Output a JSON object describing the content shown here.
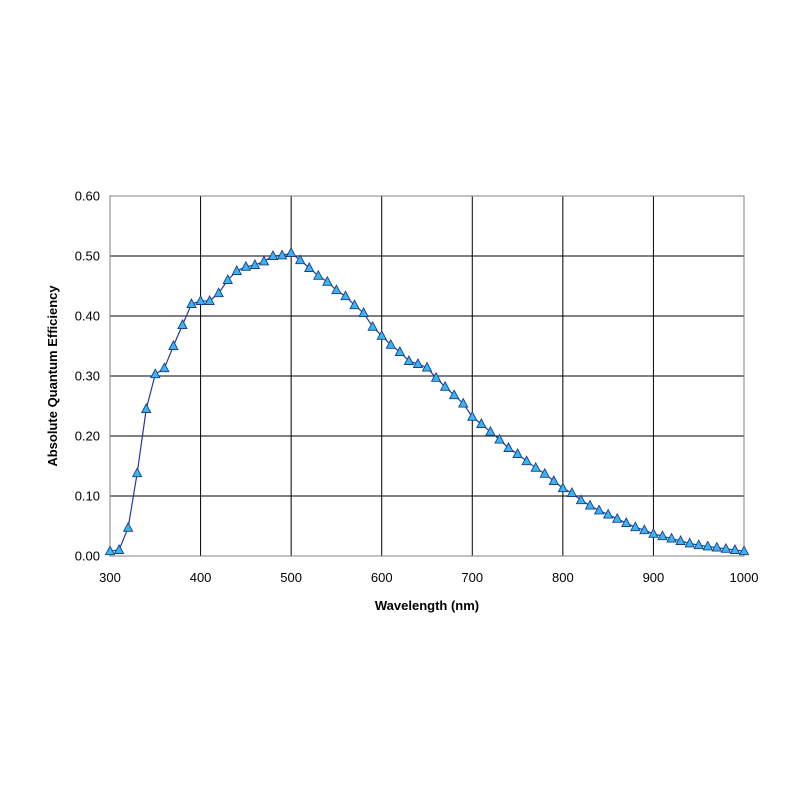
{
  "chart_data": {
    "type": "line",
    "title": "",
    "xlabel": "Wavelength (nm)",
    "ylabel": "Absolute Quantum Efficiency",
    "xlim": [
      300,
      1000
    ],
    "ylim": [
      0,
      0.6
    ],
    "x_ticks": [
      "300",
      "400",
      "500",
      "600",
      "700",
      "800",
      "900",
      "1000"
    ],
    "y_ticks": [
      "0.00",
      "0.10",
      "0.20",
      "0.30",
      "0.40",
      "0.50",
      "0.60"
    ],
    "grid": true,
    "legend": "none",
    "marker": "triangle",
    "colors": {
      "line": "#1f3a9e",
      "marker_fill": "#38b6f0",
      "marker_stroke": "#1a3d8c"
    },
    "series": [
      {
        "x": [
          300,
          310,
          320,
          330,
          340,
          350,
          360,
          370,
          380,
          390,
          400,
          410,
          420,
          430,
          440,
          450,
          460,
          470,
          480,
          490,
          500,
          510,
          520,
          530,
          540,
          550,
          560,
          570,
          580,
          590,
          600,
          610,
          620,
          630,
          640,
          650,
          660,
          670,
          680,
          690,
          700,
          710,
          720,
          730,
          740,
          750,
          760,
          770,
          780,
          790,
          800,
          810,
          820,
          830,
          840,
          850,
          860,
          870,
          880,
          890,
          900,
          910,
          920,
          930,
          940,
          950,
          960,
          970,
          980,
          990,
          1000
        ],
        "values": [
          0.008,
          0.01,
          0.047,
          0.138,
          0.245,
          0.303,
          0.313,
          0.35,
          0.385,
          0.42,
          0.425,
          0.425,
          0.438,
          0.46,
          0.475,
          0.482,
          0.485,
          0.491,
          0.5,
          0.501,
          0.505,
          0.493,
          0.48,
          0.467,
          0.457,
          0.443,
          0.433,
          0.418,
          0.405,
          0.382,
          0.367,
          0.352,
          0.34,
          0.325,
          0.32,
          0.314,
          0.297,
          0.282,
          0.268,
          0.254,
          0.232,
          0.22,
          0.207,
          0.194,
          0.18,
          0.17,
          0.158,
          0.147,
          0.137,
          0.125,
          0.113,
          0.105,
          0.093,
          0.084,
          0.076,
          0.069,
          0.062,
          0.055,
          0.048,
          0.043,
          0.037,
          0.033,
          0.029,
          0.025,
          0.021,
          0.018,
          0.016,
          0.014,
          0.012,
          0.01,
          0.008
        ]
      }
    ]
  }
}
